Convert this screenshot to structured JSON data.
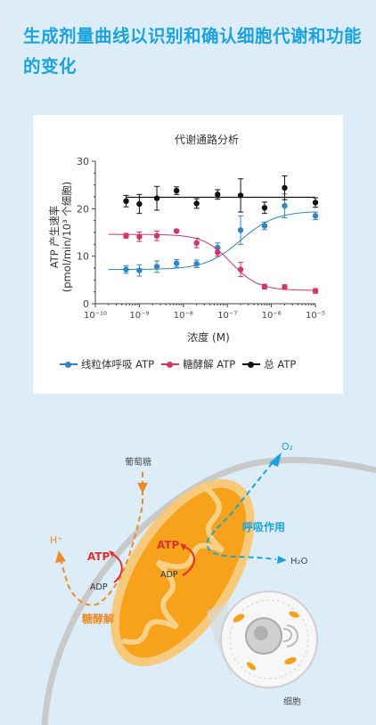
{
  "header": {
    "title": "生成剂量曲线以识别和确认细胞代谢和功能的变化"
  },
  "chart_data": {
    "type": "scatter",
    "title": "代谢通路分析",
    "xlabel": "浓度 (M)",
    "ylabel": "ATP 产生速率 (pmol/min/10³ 个细胞)",
    "xscale": "log",
    "xlim": [
      "10^-10",
      "10^-5"
    ],
    "ylim": [
      0,
      30
    ],
    "yticks": [
      0,
      10,
      20,
      30
    ],
    "xticks": [
      "10⁻¹⁰",
      "10⁻⁹",
      "10⁻⁸",
      "10⁻⁷",
      "10⁻⁶",
      "10⁻⁵"
    ],
    "x": [
      "5e-10",
      "1e-9",
      "2.5e-9",
      "7e-9",
      "2e-8",
      "6e-8",
      "2e-7",
      "7e-7",
      "2e-6",
      "1e-5"
    ],
    "series": [
      {
        "name": "线粒体呼吸 ATP",
        "color": "#2e86c8",
        "values": [
          7.2,
          7.0,
          7.8,
          8.5,
          8.4,
          11.8,
          15.5,
          16.4,
          20.6,
          18.5
        ],
        "errors": [
          0.8,
          1.2,
          1.2,
          0.8,
          0.8,
          1.0,
          3.0,
          0.8,
          2.5,
          0.8
        ]
      },
      {
        "name": "糖酵解 ATP",
        "color": "#d6336c",
        "values": [
          14.3,
          14.1,
          14.3,
          15.3,
          12.8,
          10.8,
          7.2,
          3.6,
          3.5,
          2.7
        ],
        "errors": [
          0.5,
          1.0,
          1.0,
          0.3,
          1.0,
          0.8,
          1.5,
          0.5,
          0.5,
          0.5
        ]
      },
      {
        "name": "总 ATP",
        "color": "#111111",
        "values": [
          21.6,
          21.0,
          22.2,
          23.8,
          21.1,
          23.0,
          22.8,
          20.2,
          24.4,
          21.3
        ],
        "errors": [
          1.2,
          2.0,
          2.5,
          0.8,
          1.0,
          1.0,
          3.5,
          1.2,
          2.5,
          1.0
        ]
      }
    ],
    "grid": false,
    "legend_position": "bottom"
  },
  "diagram": {
    "glucose": "葡萄糖",
    "o2": "O₂",
    "h2o": "H₂O",
    "hplus": "H⁺",
    "respiration": "呼吸作用",
    "glycolysis": "糖酵解",
    "atp": "ATP",
    "adp": "ADP",
    "cell": "细胞",
    "colors": {
      "orange": "#f08a24",
      "blue": "#1aa3e0",
      "red": "#e03030",
      "mito": "#f6a21a",
      "mito_edge": "#f7c97a"
    }
  }
}
